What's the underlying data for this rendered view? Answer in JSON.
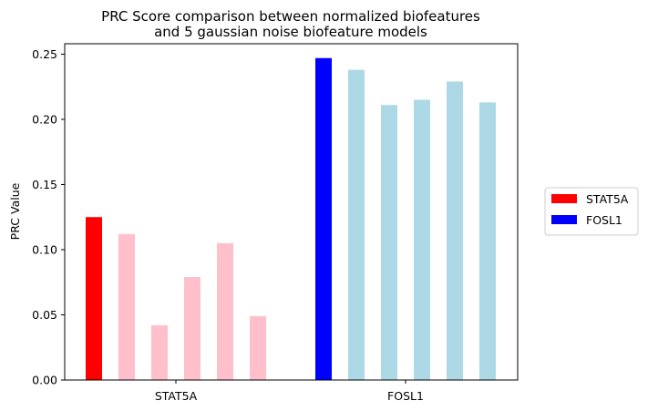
{
  "chart_data": {
    "type": "bar",
    "title_lines": [
      "PRC Score comparison between normalized biofeatures",
      "and 5 gaussian noise biofeature models"
    ],
    "xlabel": "",
    "ylabel": "PRC Value",
    "ylim": [
      0,
      0.258
    ],
    "yticks": [
      "0.00",
      "0.05",
      "0.10",
      "0.15",
      "0.20",
      "0.25"
    ],
    "categories": [
      "STAT5A",
      "FOSL1"
    ],
    "groups": [
      {
        "category": "STAT5A",
        "values": [
          0.125,
          0.112,
          0.042,
          0.079,
          0.105,
          0.049
        ],
        "main_color": "#ff0000",
        "noise_color": "#ffc0cb"
      },
      {
        "category": "FOSL1",
        "values": [
          0.247,
          0.238,
          0.211,
          0.215,
          0.229,
          0.213
        ],
        "main_color": "#0000ff",
        "noise_color": "#add8e6"
      }
    ],
    "legend": {
      "placement": "right",
      "entries": [
        {
          "label": "STAT5A",
          "color": "#ff0000"
        },
        {
          "label": "FOSL1",
          "color": "#0000ff"
        }
      ]
    },
    "grid": false
  }
}
